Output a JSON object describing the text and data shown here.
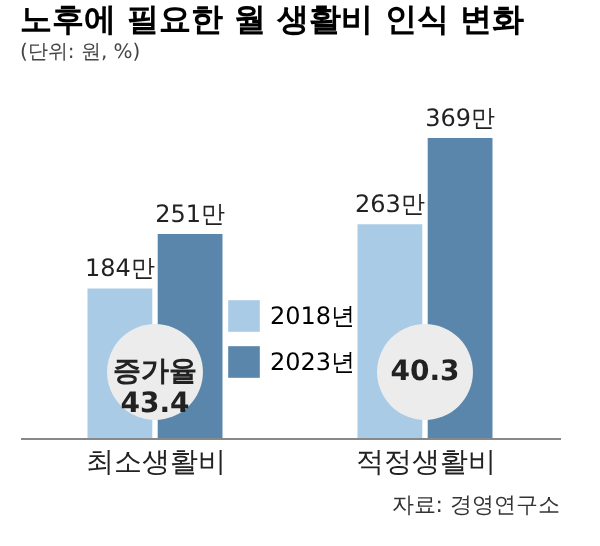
{
  "chart_data": {
    "type": "bar",
    "title": "노후에 필요한 월 생활비 인식 변화",
    "subtitle": "(단위: 원, %)",
    "categories": [
      "최소생활비",
      "적정생활비"
    ],
    "series": [
      {
        "name": "2018년",
        "color": "#a9cbe6",
        "values": [
          184,
          263
        ],
        "value_labels": [
          "184만",
          "263만"
        ]
      },
      {
        "name": "2023년",
        "color": "#5a86ab",
        "values": [
          251,
          369
        ],
        "value_labels": [
          "251만",
          "369만"
        ]
      }
    ],
    "annotations": [
      "증가율\n43.4",
      "40.3",
      "자료: 경영연구소"
    ],
    "legend": "bottom"
  }
}
